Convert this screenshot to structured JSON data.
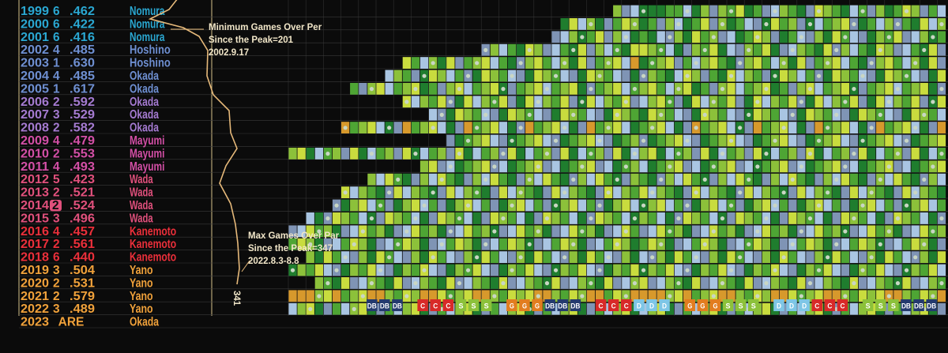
{
  "chart_data": {
    "type": "heatmap",
    "title": "",
    "xlabel": "",
    "ylabel": "",
    "seasons": [
      {
        "year": "1999",
        "rank": "6",
        "pct": ".462",
        "manager": "Nomura",
        "tone": "cyan",
        "pattern": "ppnnhpldlnmpndhlnpdmlnphndlpnmldnhpmnldhp",
        "start": 0.5
      },
      {
        "year": "2000",
        "rank": "6",
        "pct": ".422",
        "manager": "Nomura",
        "tone": "cyan",
        "pattern": "pndlhpnmdlpnhdpmnldphnlmdpnhldnpmhlpdnml",
        "start": 0.42
      },
      {
        "year": "2001",
        "rank": "6",
        "pct": ".416",
        "manager": "Nomura",
        "tone": "cyan",
        "pattern": "nphdlpmnldhpnmldpnhdlpmnhdplnmdhlpnmdlhp",
        "start": 0.4
      },
      {
        "year": "2002",
        "rank": "4",
        "pct": ".485",
        "manager": "Hoshino",
        "tone": "blue",
        "pattern": "mlnhpdlnmphdlnmpdhlnpmdlhnpmldhnpmdlhnpm",
        "start": 0.3
      },
      {
        "year": "2003",
        "rank": "1",
        "pct": ".630",
        "manager": "Hoshino",
        "tone": "blue",
        "pattern": "pnlmdnhlmnpdlmnhlpmdnlmhnpdlmnhlpmdnlmho",
        "start": 0.18
      },
      {
        "year": "2004",
        "rank": "4",
        "pct": ".485",
        "manager": "Okada",
        "tone": "blue",
        "pattern": "dlnphmldnpmhlndpmlhndpmlnhdpmlnhdpmlnhdp",
        "start": 0.15
      },
      {
        "year": "2005",
        "rank": "1",
        "pct": ".617",
        "manager": "Okada",
        "tone": "blue",
        "pattern": "lmnhlmpndlmhnlmpndlmhnlmpdnlmhnlmpdnlmhn",
        "start": 0.1
      },
      {
        "year": "2006",
        "rank": "2",
        "pct": ".592",
        "manager": "Okada",
        "tone": "purple",
        "pattern": "hlmndpmhlnmdpmhlnmdpmhlnmdpmhlnmdpmhlnmd",
        "start": 0.18
      },
      {
        "year": "2007",
        "rank": "3",
        "pct": ".529",
        "manager": "Okada",
        "tone": "purple",
        "pattern": "pmlnhdpmlnhdpmlnhdpmlnhdpmlnhdpmlnhdpmln",
        "start": 0.22
      },
      {
        "year": "2008",
        "rank": "2",
        "pct": ".582",
        "manager": "Okada",
        "tone": "purple",
        "pattern": "nlmhpdonlmhpdonlmhpdonlmhpdonlmhpdonlmhp",
        "start": 0.08
      },
      {
        "year": "2009",
        "rank": "4",
        "pct": ".479",
        "manager": "Mayumi",
        "tone": "magenta",
        "pattern": "dpnlmhdpnlmhdpnlmhdpnlmhdpnlmhdpnlmhdpnl",
        "start": 0.24
      },
      {
        "year": "2010",
        "rank": "2",
        "pct": ".553",
        "manager": "Mayumi",
        "tone": "magenta",
        "pattern": "lmphnldmphnldmphnldmphnldmphnldmphnldmph",
        "start": 0.0
      },
      {
        "year": "2011",
        "rank": "4",
        "pct": ".493",
        "manager": "Mayumi",
        "tone": "magenta",
        "pattern": "hpnlmdhpnlmdhpnlmdhpnlmdhpnlmdhpnlmdhpnl",
        "start": 0.2
      },
      {
        "year": "2012",
        "rank": "5",
        "pct": ".423",
        "manager": "Wada",
        "tone": "pink",
        "pattern": "npdlhmnpdlhmnpdlhmnpdlhmnpdlhmnpdlhmnpdl",
        "start": 0.12
      },
      {
        "year": "2013",
        "rank": "2",
        "pct": ".521",
        "manager": "Wada",
        "tone": "pink",
        "pattern": "mhlnpdmhlnpdmhlnpdmhlnpdmhlnpdmhlnpdmhln",
        "start": 0.09
      },
      {
        "year": "2014",
        "rank": "2",
        "pct": ".524",
        "manager": "Wada",
        "tone": "pink",
        "pattern": "plmhndplmhndplmhndplmhndplmhndplmhndplmh",
        "start": 0.07,
        "highlight": true
      },
      {
        "year": "2015",
        "rank": "3",
        "pct": ".496",
        "manager": "Wada",
        "tone": "pink",
        "pattern": "lnhpdmlnhpdmlnhpdmlnhpdmlnhpdmlnhpdmlnhp",
        "start": 0.03
      },
      {
        "year": "2016",
        "rank": "4",
        "pct": ".457",
        "manager": "Kanemoto",
        "tone": "red",
        "pattern": "dhmnlpdhmnlpdhmnlpdhmnlpdhmnlpdhmnlpdhmn",
        "start": 0.0
      },
      {
        "year": "2017",
        "rank": "2",
        "pct": ".561",
        "manager": "Kanemoto",
        "tone": "red",
        "pattern": "nmlpdhnmlpdhnmlpdhnmlpdhnmlpdhnmlpdhnmlp",
        "start": 0.01
      },
      {
        "year": "2018",
        "rank": "6",
        "pct": ".440",
        "manager": "Kanemoto",
        "tone": "red",
        "pattern": "hdlpmnhdlpmnhdlpmnhdlpmnhdlpmnhdlpmnhdlp",
        "start": 0.03
      },
      {
        "year": "2019",
        "rank": "3",
        "pct": ".504",
        "manager": "Yano",
        "tone": "orange",
        "pattern": "plnmhdplnmhdplnmhdplnmhdplnmhdplnmhdplnm",
        "start": 0.0
      },
      {
        "year": "2020",
        "rank": "2",
        "pct": ".531",
        "manager": "Yano",
        "tone": "orange",
        "pattern": "mdhlnpmdhlnpmdhlnpmdhlnpmdhlnpmdhlnpmdhl",
        "start": 0.05
      },
      {
        "year": "2021",
        "rank": "2",
        "pct": ".579",
        "manager": "Yano",
        "tone": "orange",
        "pattern": "ooolmonlmoolnmloomnlmoolnmlmoolnmloonmlo",
        "start": 0.0
      },
      {
        "year": "2022",
        "rank": "3",
        "pct": ".489",
        "manager": "Yano",
        "tone": "orange",
        "pattern": "hlmpdnhlmpdnhlmpdnhlmpdnhlmpdnhlmpdnhlmp",
        "start": 0.0
      },
      {
        "year": "2023",
        "rank": "ARE",
        "pct": "",
        "manager": "Okada",
        "tone": "orange",
        "pattern": "",
        "start": 0.0
      }
    ],
    "opponent_sequence": [
      "DB",
      "DB",
      "DB",
      "",
      "C",
      "C",
      "C",
      "S",
      "S",
      "S",
      "",
      "G",
      "G",
      "G",
      "DB",
      "DB",
      "DB",
      "",
      "C",
      "C",
      "C",
      "D",
      "D",
      "D",
      "",
      "G",
      "G",
      "G",
      "S",
      "S",
      "S",
      "",
      "D",
      "D",
      "D",
      "C",
      "C",
      "C",
      "",
      "S",
      "S",
      "S",
      "DB",
      "DB",
      "DB"
    ],
    "opponent_colors": {
      "DB": "#243a6e",
      "C": "#d82a28",
      "S": "#8cc13a",
      "G": "#e27d1f",
      "D": "#7ec6e6"
    },
    "row_tone_colors": {
      "cyan": "#2aa7d1",
      "blue": "#6e8fd1",
      "purple": "#a47ad0",
      "magenta": "#d34fa6",
      "pink": "#e0507c",
      "red": "#ea2f3a",
      "orange": "#f0a13a"
    },
    "cell_colors": {
      "p": "#1f7d2e",
      "n": "#4ea534",
      "l": "#8cc13a",
      "m": "#c9dc3e",
      "h": "#a9c5e2",
      "d": "#7f94b5",
      "o": "#d7992c"
    },
    "annotations": [
      {
        "text": [
          "Minimum Games Over Per",
          "Since the Peak=201",
          "2002.9.17"
        ]
      },
      {
        "text": [
          "Max Games Over Par",
          "Since the Peak=347",
          "2022.8.3-8.8"
        ]
      }
    ],
    "line_end_label": "341"
  }
}
